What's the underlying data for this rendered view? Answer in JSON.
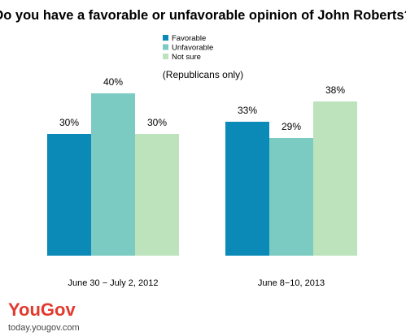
{
  "chart_data": {
    "type": "bar",
    "title": "Do you have a favorable or unfavorable opinion of John Roberts?",
    "subtitle": "(Republicans only)",
    "categories": [
      "June 30 − July 2, 2012",
      "June 8−10, 2013"
    ],
    "series": [
      {
        "name": "Favorable",
        "color": "#0b8ab8",
        "values": [
          30,
          33
        ],
        "labels": [
          "30%",
          "33%"
        ]
      },
      {
        "name": "Unfavorable",
        "color": "#7ccbc2",
        "values": [
          40,
          29
        ],
        "labels": [
          "40%",
          "29%"
        ]
      },
      {
        "name": "Not sure",
        "color": "#bde3bd",
        "values": [
          30,
          38
        ],
        "labels": [
          "30%",
          "38%"
        ]
      }
    ],
    "ylim": [
      0,
      45
    ],
    "grid": false,
    "legend": "top-center"
  },
  "branding": {
    "logo_you": "You",
    "logo_gov": "Gov",
    "url": "today.yougov.com",
    "brand_color": "#e23a2e"
  }
}
